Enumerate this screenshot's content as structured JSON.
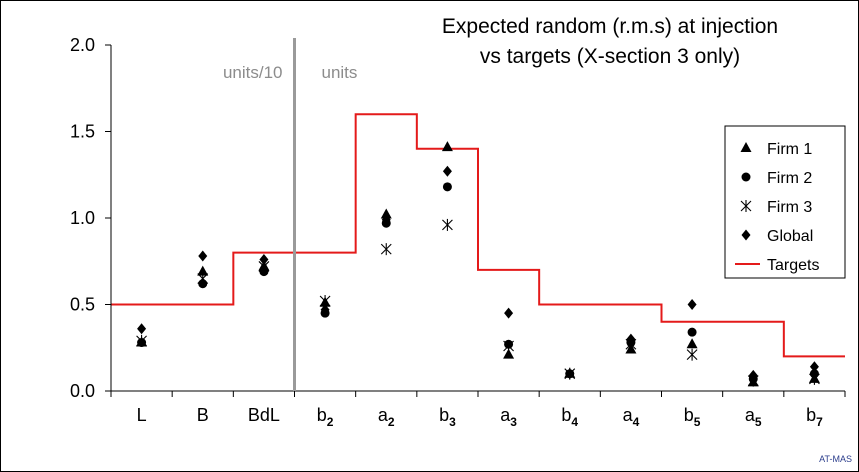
{
  "chart_data": {
    "type": "scatter",
    "title_lines": [
      "Expected random (r.m.s) at injection",
      "vs targets (X-section 3 only)"
    ],
    "categories": [
      {
        "base": "L",
        "sub": ""
      },
      {
        "base": "B",
        "sub": ""
      },
      {
        "base": "BdL",
        "sub": ""
      },
      {
        "base": "b",
        "sub": "2"
      },
      {
        "base": "a",
        "sub": "2"
      },
      {
        "base": "b",
        "sub": "3"
      },
      {
        "base": "a",
        "sub": "3"
      },
      {
        "base": "b",
        "sub": "4"
      },
      {
        "base": "a",
        "sub": "4"
      },
      {
        "base": "b",
        "sub": "5"
      },
      {
        "base": "a",
        "sub": "5"
      },
      {
        "base": "b",
        "sub": "7"
      }
    ],
    "ylim": [
      0,
      2.0
    ],
    "yticks": [
      "0.0",
      "0.5",
      "1.0",
      "1.5",
      "2.0"
    ],
    "region_labels": [
      "units/10",
      "units"
    ],
    "divider_after_index": 2,
    "series": [
      {
        "name": "Firm 1",
        "marker": "triangle",
        "values": [
          0.28,
          0.69,
          0.72,
          0.51,
          1.02,
          1.41,
          0.21,
          0.1,
          0.24,
          0.27,
          0.05,
          0.07
        ]
      },
      {
        "name": "Firm 2",
        "marker": "circle",
        "values": [
          0.28,
          0.62,
          0.69,
          0.45,
          0.97,
          1.18,
          0.27,
          0.1,
          0.28,
          0.34,
          0.07,
          0.1
        ]
      },
      {
        "name": "Firm 3",
        "marker": "star",
        "values": [
          0.29,
          0.65,
          0.72,
          0.52,
          0.82,
          0.96,
          0.26,
          0.1,
          0.27,
          0.21,
          0.06,
          0.07
        ]
      },
      {
        "name": "Global",
        "marker": "diamond",
        "values": [
          0.36,
          0.78,
          0.76,
          0.47,
          0.99,
          1.27,
          0.45,
          0.1,
          0.3,
          0.5,
          0.09,
          0.14
        ]
      }
    ],
    "targets": {
      "name": "Targets",
      "color": "#e41a1a",
      "steps": [
        {
          "x0": 0,
          "x1": 2,
          "value": 0.5
        },
        {
          "x0": 2,
          "x1": 4,
          "value": 0.8
        },
        {
          "x0": 4,
          "x1": 5,
          "value": 1.6
        },
        {
          "x0": 5,
          "x1": 6,
          "value": 1.4
        },
        {
          "x0": 6,
          "x1": 7,
          "value": 0.7
        },
        {
          "x0": 7,
          "x1": 9,
          "value": 0.5
        },
        {
          "x0": 9,
          "x1": 11,
          "value": 0.4
        },
        {
          "x0": 11,
          "x1": 12,
          "value": 0.2
        }
      ]
    },
    "grid": false,
    "legend_position": "right"
  },
  "credit": "AT-MAS"
}
